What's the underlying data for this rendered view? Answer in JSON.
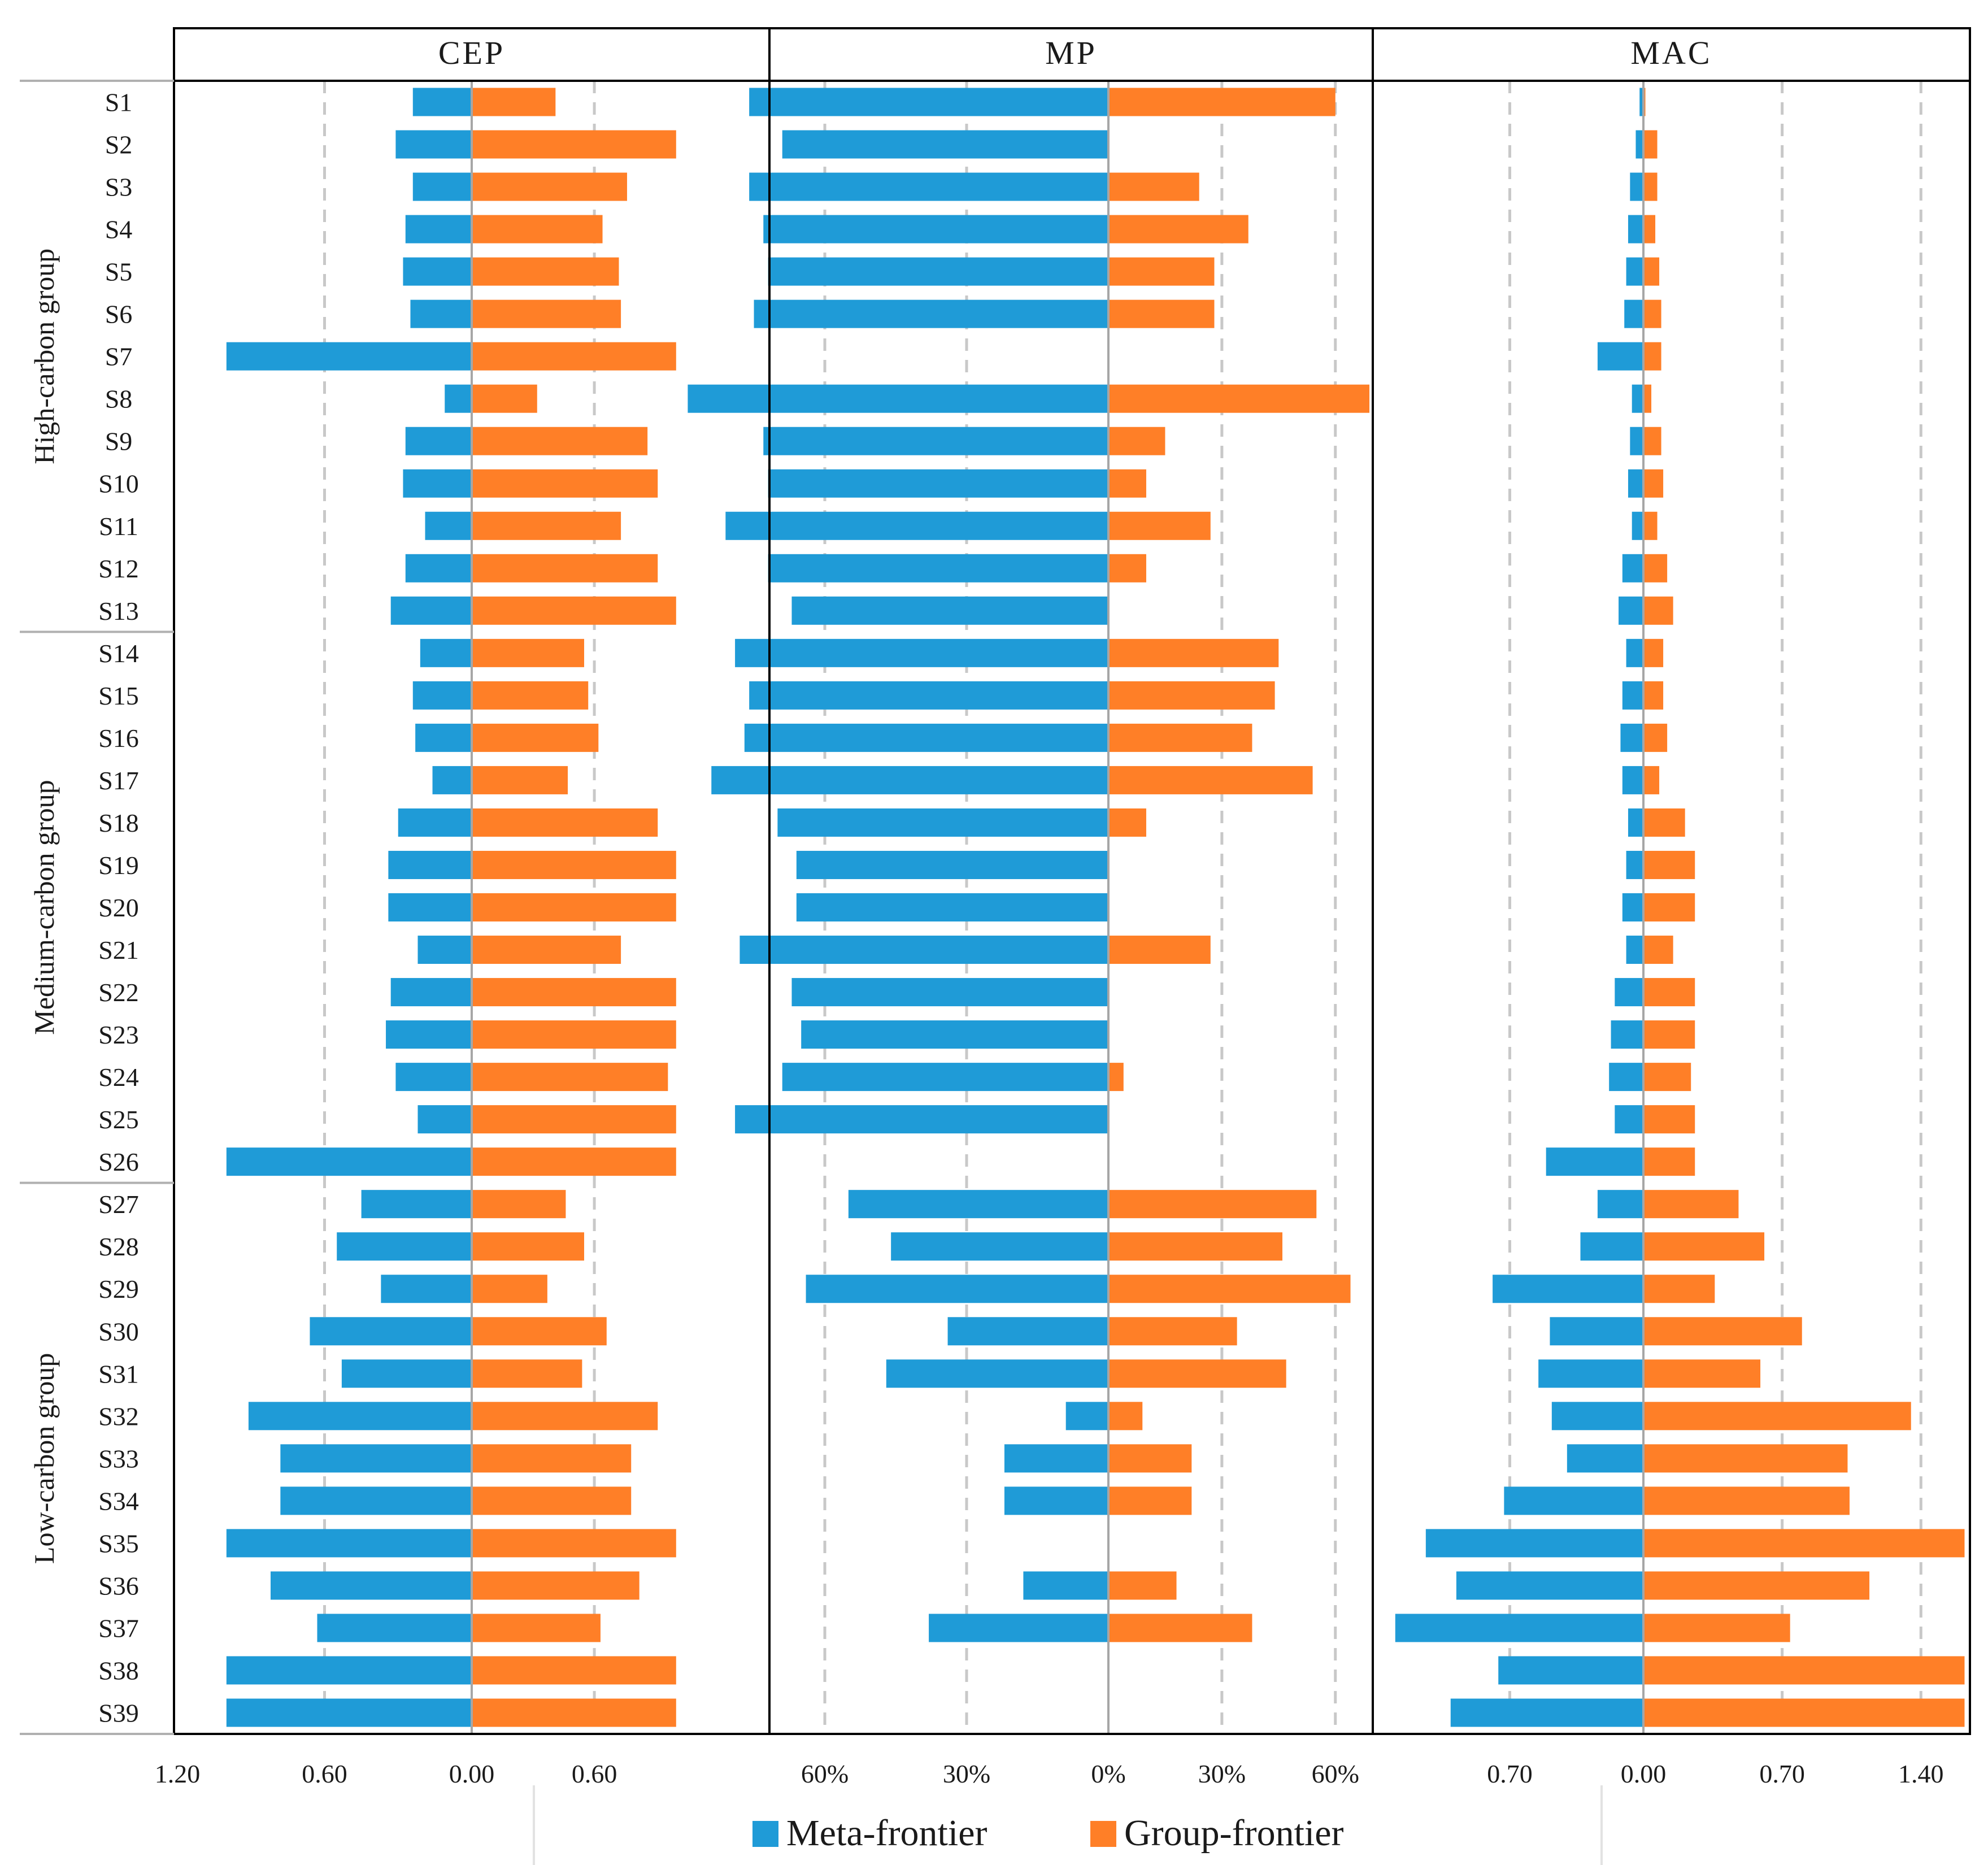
{
  "chart_data": {
    "type": "bar",
    "layout": "butterfly-panels",
    "categories": [
      "S1",
      "S2",
      "S3",
      "S4",
      "S5",
      "S6",
      "S7",
      "S8",
      "S9",
      "S10",
      "S11",
      "S12",
      "S13",
      "S14",
      "S15",
      "S16",
      "S17",
      "S18",
      "S19",
      "S20",
      "S21",
      "S22",
      "S23",
      "S24",
      "S25",
      "S26",
      "S27",
      "S28",
      "S29",
      "S30",
      "S31",
      "S32",
      "S33",
      "S34",
      "S35",
      "S36",
      "S37",
      "S38",
      "S39"
    ],
    "groups": [
      {
        "label": "High-carbon group",
        "from": "S1",
        "to": "S13"
      },
      {
        "label": "Medium-carbon group",
        "from": "S14",
        "to": "S26"
      },
      {
        "label": "Low-carbon group",
        "from": "S27",
        "to": "S39"
      }
    ],
    "legend": {
      "position": "bottom-center",
      "entries": [
        {
          "name": "Meta-frontier",
          "color": "#1f9bd7"
        },
        {
          "name": "Group-frontier",
          "color": "#ff7f27"
        }
      ]
    },
    "colors": {
      "meta": "#1f9bd7",
      "group": "#ff7f27",
      "grid": "#c8c8c8",
      "axis": "#a6a6a6",
      "border": "#000000",
      "text": "#1a1a1a"
    },
    "panels": [
      {
        "title": "CEP",
        "xlim_left": 1.2,
        "xlim_right": 1.44,
        "tick_values": [
          -1.2,
          -0.6,
          0,
          0.6
        ],
        "tick_labels": [
          "1.20",
          "0.60",
          "0.00",
          "0.60"
        ],
        "grid": [
          -0.6,
          0.6
        ],
        "series": [
          {
            "name": "Meta-frontier",
            "side": "left",
            "values": [
              0.24,
              0.31,
              0.24,
              0.27,
              0.28,
              0.25,
              1.0,
              0.11,
              0.27,
              0.28,
              0.19,
              0.27,
              0.33,
              0.21,
              0.24,
              0.23,
              0.16,
              0.3,
              0.34,
              0.34,
              0.22,
              0.33,
              0.35,
              0.31,
              0.22,
              1.0,
              0.45,
              0.55,
              0.37,
              0.66,
              0.53,
              0.91,
              0.78,
              0.78,
              1.0,
              0.82,
              0.63,
              1.0,
              1.0
            ]
          },
          {
            "name": "Group-frontier",
            "side": "right",
            "values": [
              0.41,
              1.0,
              0.76,
              0.64,
              0.72,
              0.73,
              1.0,
              0.32,
              0.86,
              0.91,
              0.73,
              0.91,
              1.0,
              0.55,
              0.57,
              0.62,
              0.47,
              0.91,
              1.0,
              1.0,
              0.73,
              1.0,
              1.0,
              0.96,
              1.0,
              1.0,
              0.46,
              0.55,
              0.37,
              0.66,
              0.54,
              0.91,
              0.78,
              0.78,
              1.0,
              0.82,
              0.63,
              1.0,
              1.0
            ]
          }
        ]
      },
      {
        "title": "MP",
        "xlim_left": 0.71,
        "xlim_right": 0.69,
        "tick_values": [
          -0.6,
          -0.3,
          0,
          0.3,
          0.6
        ],
        "tick_labels": [
          "60%",
          "30%",
          "0%",
          "30%",
          "60%"
        ],
        "grid": [
          -0.6,
          -0.3,
          0.3,
          0.6
        ],
        "series": [
          {
            "name": "Meta-frontier",
            "side": "left",
            "values": [
              0.76,
              0.69,
              0.76,
              0.73,
              0.72,
              0.75,
              0,
              0.89,
              0.73,
              0.72,
              0.81,
              0.72,
              0.67,
              0.79,
              0.76,
              0.77,
              0.84,
              0.7,
              0.66,
              0.66,
              0.78,
              0.67,
              0.65,
              0.69,
              0.79,
              0,
              0.55,
              0.46,
              0.64,
              0.34,
              0.47,
              0.09,
              0.22,
              0.22,
              0,
              0.18,
              0.38,
              0,
              0
            ]
          },
          {
            "name": "Group-frontier",
            "side": "right",
            "values": [
              0.6,
              0,
              0.24,
              0.37,
              0.28,
              0.28,
              0,
              0.69,
              0.15,
              0.1,
              0.27,
              0.1,
              0,
              0.45,
              0.44,
              0.38,
              0.54,
              0.1,
              0,
              0,
              0.27,
              0,
              0,
              0.04,
              0,
              0,
              0.55,
              0.46,
              0.64,
              0.34,
              0.47,
              0.09,
              0.22,
              0.22,
              0,
              0.18,
              0.38,
              0,
              0
            ]
          }
        ]
      },
      {
        "title": "MAC",
        "xlim_left": 1.4,
        "xlim_right": 1.63,
        "tick_values": [
          -0.7,
          0,
          0.7,
          1.4
        ],
        "tick_labels": [
          "0.70",
          "0.00",
          "0.70",
          "1.40"
        ],
        "grid": [
          -0.7,
          0.7,
          1.4
        ],
        "series": [
          {
            "name": "Meta-frontier",
            "side": "left",
            "values": [
              0.02,
              0.04,
              0.07,
              0.08,
              0.09,
              0.1,
              0.24,
              0.06,
              0.07,
              0.08,
              0.06,
              0.11,
              0.13,
              0.09,
              0.11,
              0.12,
              0.11,
              0.08,
              0.09,
              0.11,
              0.09,
              0.15,
              0.17,
              0.18,
              0.15,
              0.51,
              0.24,
              0.33,
              0.79,
              0.49,
              0.55,
              0.48,
              0.4,
              0.73,
              1.14,
              0.98,
              1.3,
              0.76,
              1.01
            ]
          },
          {
            "name": "Group-frontier",
            "side": "right",
            "values": [
              0.01,
              0.07,
              0.07,
              0.06,
              0.08,
              0.09,
              0.09,
              0.04,
              0.09,
              0.1,
              0.07,
              0.12,
              0.15,
              0.1,
              0.1,
              0.12,
              0.08,
              0.21,
              0.26,
              0.26,
              0.15,
              0.26,
              0.26,
              0.24,
              0.26,
              0.26,
              0.48,
              0.61,
              0.36,
              0.8,
              0.59,
              1.35,
              1.03,
              1.04,
              1.62,
              1.14,
              0.74,
              1.62,
              1.62
            ]
          }
        ]
      }
    ]
  }
}
